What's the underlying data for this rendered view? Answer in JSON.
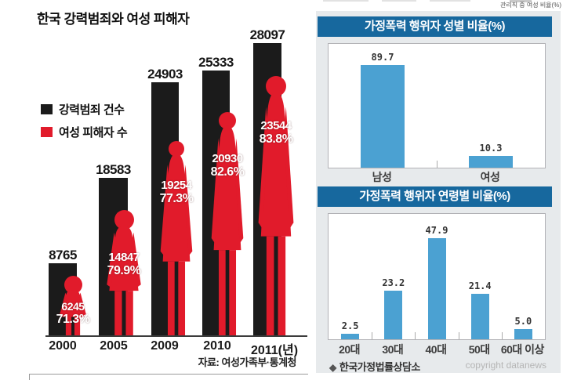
{
  "colors": {
    "crime_bar_black": "#1b1b1b",
    "victim_red": "#e11b2b",
    "header_blue": "#17689e",
    "bar_blue": "#4ba1d2"
  },
  "left_chart": {
    "title": "한국 강력범죄와 여성 피해자",
    "legend": [
      {
        "label": "강력범죄 건수"
      },
      {
        "label": "여성 피해자 수"
      }
    ],
    "years": [
      {
        "year": "2000",
        "crimes": "8765",
        "victims": "6245",
        "percent": "71.3%"
      },
      {
        "year": "2005",
        "crimes": "18583",
        "victims": "14847",
        "percent": "79.9%"
      },
      {
        "year": "2009",
        "crimes": "24903",
        "victims": "19254",
        "percent": "77.3%"
      },
      {
        "year": "2010",
        "crimes": "25333",
        "victims": "20930",
        "percent": "82.6%"
      },
      {
        "year": "2011(년)",
        "crimes": "28097",
        "victims": "23544",
        "percent": "83.8%"
      }
    ],
    "source": "자료: 여성가족부·통계청"
  },
  "right_panel": {
    "top_note": "관리직 중 여성 비율(%)",
    "gender_chart": {
      "title": "가정폭력 행위자 성별 비율(%)",
      "bars": [
        {
          "label": "남성",
          "value": "89.7"
        },
        {
          "label": "여성",
          "value": "10.3"
        }
      ]
    },
    "age_chart": {
      "title": "가정폭력 행위자 연령별 비율(%)",
      "bars": [
        {
          "label": "20대",
          "value": "2.5"
        },
        {
          "label": "30대",
          "value": "23.2"
        },
        {
          "label": "40대",
          "value": "47.9"
        },
        {
          "label": "50대",
          "value": "21.4"
        },
        {
          "label": "60대 이상",
          "value": "5.0"
        }
      ]
    },
    "footer": {
      "bullet": "◆",
      "source": "한국가정법률상담소",
      "copyright": "copyright datanews"
    }
  },
  "chart_data": [
    {
      "type": "bar",
      "title": "한국 강력범죄와 여성 피해자",
      "categories": [
        "2000",
        "2005",
        "2009",
        "2010",
        "2011"
      ],
      "series": [
        {
          "name": "강력범죄 건수",
          "values": [
            8765,
            18583,
            24903,
            25333,
            28097
          ]
        },
        {
          "name": "여성 피해자 수",
          "values": [
            6245,
            14847,
            19254,
            20930,
            23544
          ]
        }
      ],
      "annotations": [
        "71.3%",
        "79.9%",
        "77.3%",
        "82.6%",
        "83.8%"
      ],
      "xlabel": "년",
      "ylabel": "",
      "legend_position": "left-middle",
      "source": "자료: 여성가족부·통계청"
    },
    {
      "type": "bar",
      "title": "가정폭력 행위자 성별 비율(%)",
      "categories": [
        "남성",
        "여성"
      ],
      "values": [
        89.7,
        10.3
      ],
      "xlabel": "",
      "ylabel": "",
      "ylim": [
        0,
        100
      ],
      "grid": false
    },
    {
      "type": "bar",
      "title": "가정폭력 행위자 연령별 비율(%)",
      "categories": [
        "20대",
        "30대",
        "40대",
        "50대",
        "60대 이상"
      ],
      "values": [
        2.5,
        23.2,
        47.9,
        21.4,
        5.0
      ],
      "xlabel": "",
      "ylabel": "",
      "ylim": [
        0,
        55
      ],
      "grid": false,
      "source": "한국가정법률상담소"
    }
  ]
}
